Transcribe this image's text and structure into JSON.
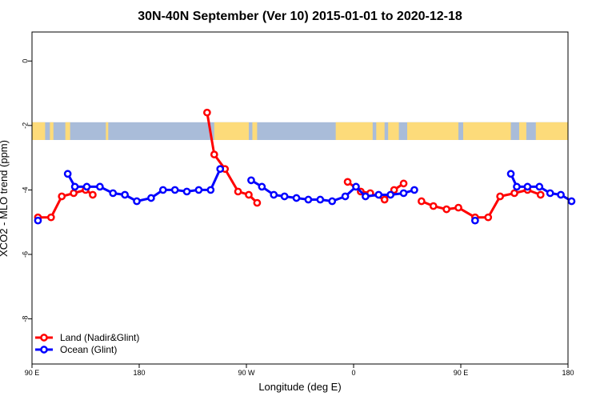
{
  "chart_data": {
    "type": "line",
    "title": "30N-40N September (Ver 10)   2015-01-01 to 2020-12-18",
    "xlabel": "Longitude (deg E)",
    "ylabel": "XCO2 - MLO trend (ppm)",
    "xlim": [
      90,
      540
    ],
    "ylim": [
      -9.4,
      0.9
    ],
    "x_ticks": [
      {
        "value": 90,
        "label": "90 E"
      },
      {
        "value": 180,
        "label": "180"
      },
      {
        "value": 270,
        "label": "90 W"
      },
      {
        "value": 360,
        "label": "0"
      },
      {
        "value": 450,
        "label": "90 E"
      },
      {
        "value": 540,
        "label": "180"
      }
    ],
    "y_ticks": [
      {
        "value": 0,
        "label": "0"
      },
      {
        "value": -2,
        "label": "-2"
      },
      {
        "value": -4,
        "label": "-4"
      },
      {
        "value": -6,
        "label": "-6"
      },
      {
        "value": -8,
        "label": "-8"
      }
    ],
    "map_strip": {
      "y_top": -1.9,
      "y_bottom": -2.45,
      "ocean_color": "#a9bcd9",
      "land_color": "#fddb7a"
    },
    "series": [
      {
        "name": "Land (Nadir&Glint)",
        "color": "#ff0000",
        "segments": [
          [
            [
              95,
              -4.85
            ],
            [
              106,
              -4.85
            ],
            [
              115,
              -4.2
            ],
            [
              125,
              -4.1
            ],
            [
              135,
              -4.0
            ],
            [
              141,
              -4.15
            ]
          ],
          [
            [
              237,
              -1.6
            ],
            [
              243,
              -2.9
            ],
            [
              252,
              -3.35
            ],
            [
              263,
              -4.05
            ],
            [
              272,
              -4.15
            ],
            [
              279,
              -4.4
            ]
          ],
          [
            [
              355,
              -3.75
            ],
            [
              366,
              -4.05
            ],
            [
              374,
              -4.1
            ],
            [
              386,
              -4.3
            ],
            [
              394,
              -4.0
            ],
            [
              402,
              -3.8
            ]
          ],
          [
            [
              417,
              -4.35
            ],
            [
              427,
              -4.5
            ],
            [
              438,
              -4.6
            ],
            [
              448,
              -4.55
            ],
            [
              462,
              -4.85
            ],
            [
              473,
              -4.85
            ],
            [
              483,
              -4.2
            ],
            [
              495,
              -4.1
            ],
            [
              506,
              -4.0
            ],
            [
              517,
              -4.15
            ]
          ]
        ]
      },
      {
        "name": "Ocean (Glint)",
        "color": "#0000ff",
        "segments": [
          [
            [
              95,
              -4.95
            ]
          ],
          [
            [
              120,
              -3.5
            ],
            [
              126,
              -3.9
            ],
            [
              136,
              -3.9
            ],
            [
              147,
              -3.9
            ],
            [
              158,
              -4.1
            ],
            [
              168,
              -4.15
            ],
            [
              178,
              -4.35
            ],
            [
              190,
              -4.25
            ],
            [
              200,
              -4.0
            ],
            [
              210,
              -4.0
            ],
            [
              220,
              -4.05
            ],
            [
              230,
              -4.0
            ],
            [
              240,
              -4.0
            ],
            [
              248,
              -3.35
            ]
          ],
          [
            [
              274,
              -3.7
            ],
            [
              283,
              -3.9
            ],
            [
              293,
              -4.15
            ],
            [
              302,
              -4.2
            ],
            [
              312,
              -4.25
            ],
            [
              322,
              -4.3
            ],
            [
              332,
              -4.3
            ],
            [
              342,
              -4.35
            ],
            [
              353,
              -4.2
            ],
            [
              362,
              -3.9
            ],
            [
              370,
              -4.2
            ],
            [
              381,
              -4.15
            ],
            [
              391,
              -4.15
            ],
            [
              402,
              -4.1
            ],
            [
              411,
              -4.0
            ]
          ],
          [
            [
              462,
              -4.95
            ]
          ],
          [
            [
              492,
              -3.5
            ],
            [
              497,
              -3.9
            ],
            [
              506,
              -3.9
            ],
            [
              516,
              -3.9
            ],
            [
              525,
              -4.1
            ],
            [
              534,
              -4.15
            ],
            [
              543,
              -4.35
            ]
          ]
        ]
      }
    ],
    "legend": {
      "position": "bottom-left"
    }
  }
}
